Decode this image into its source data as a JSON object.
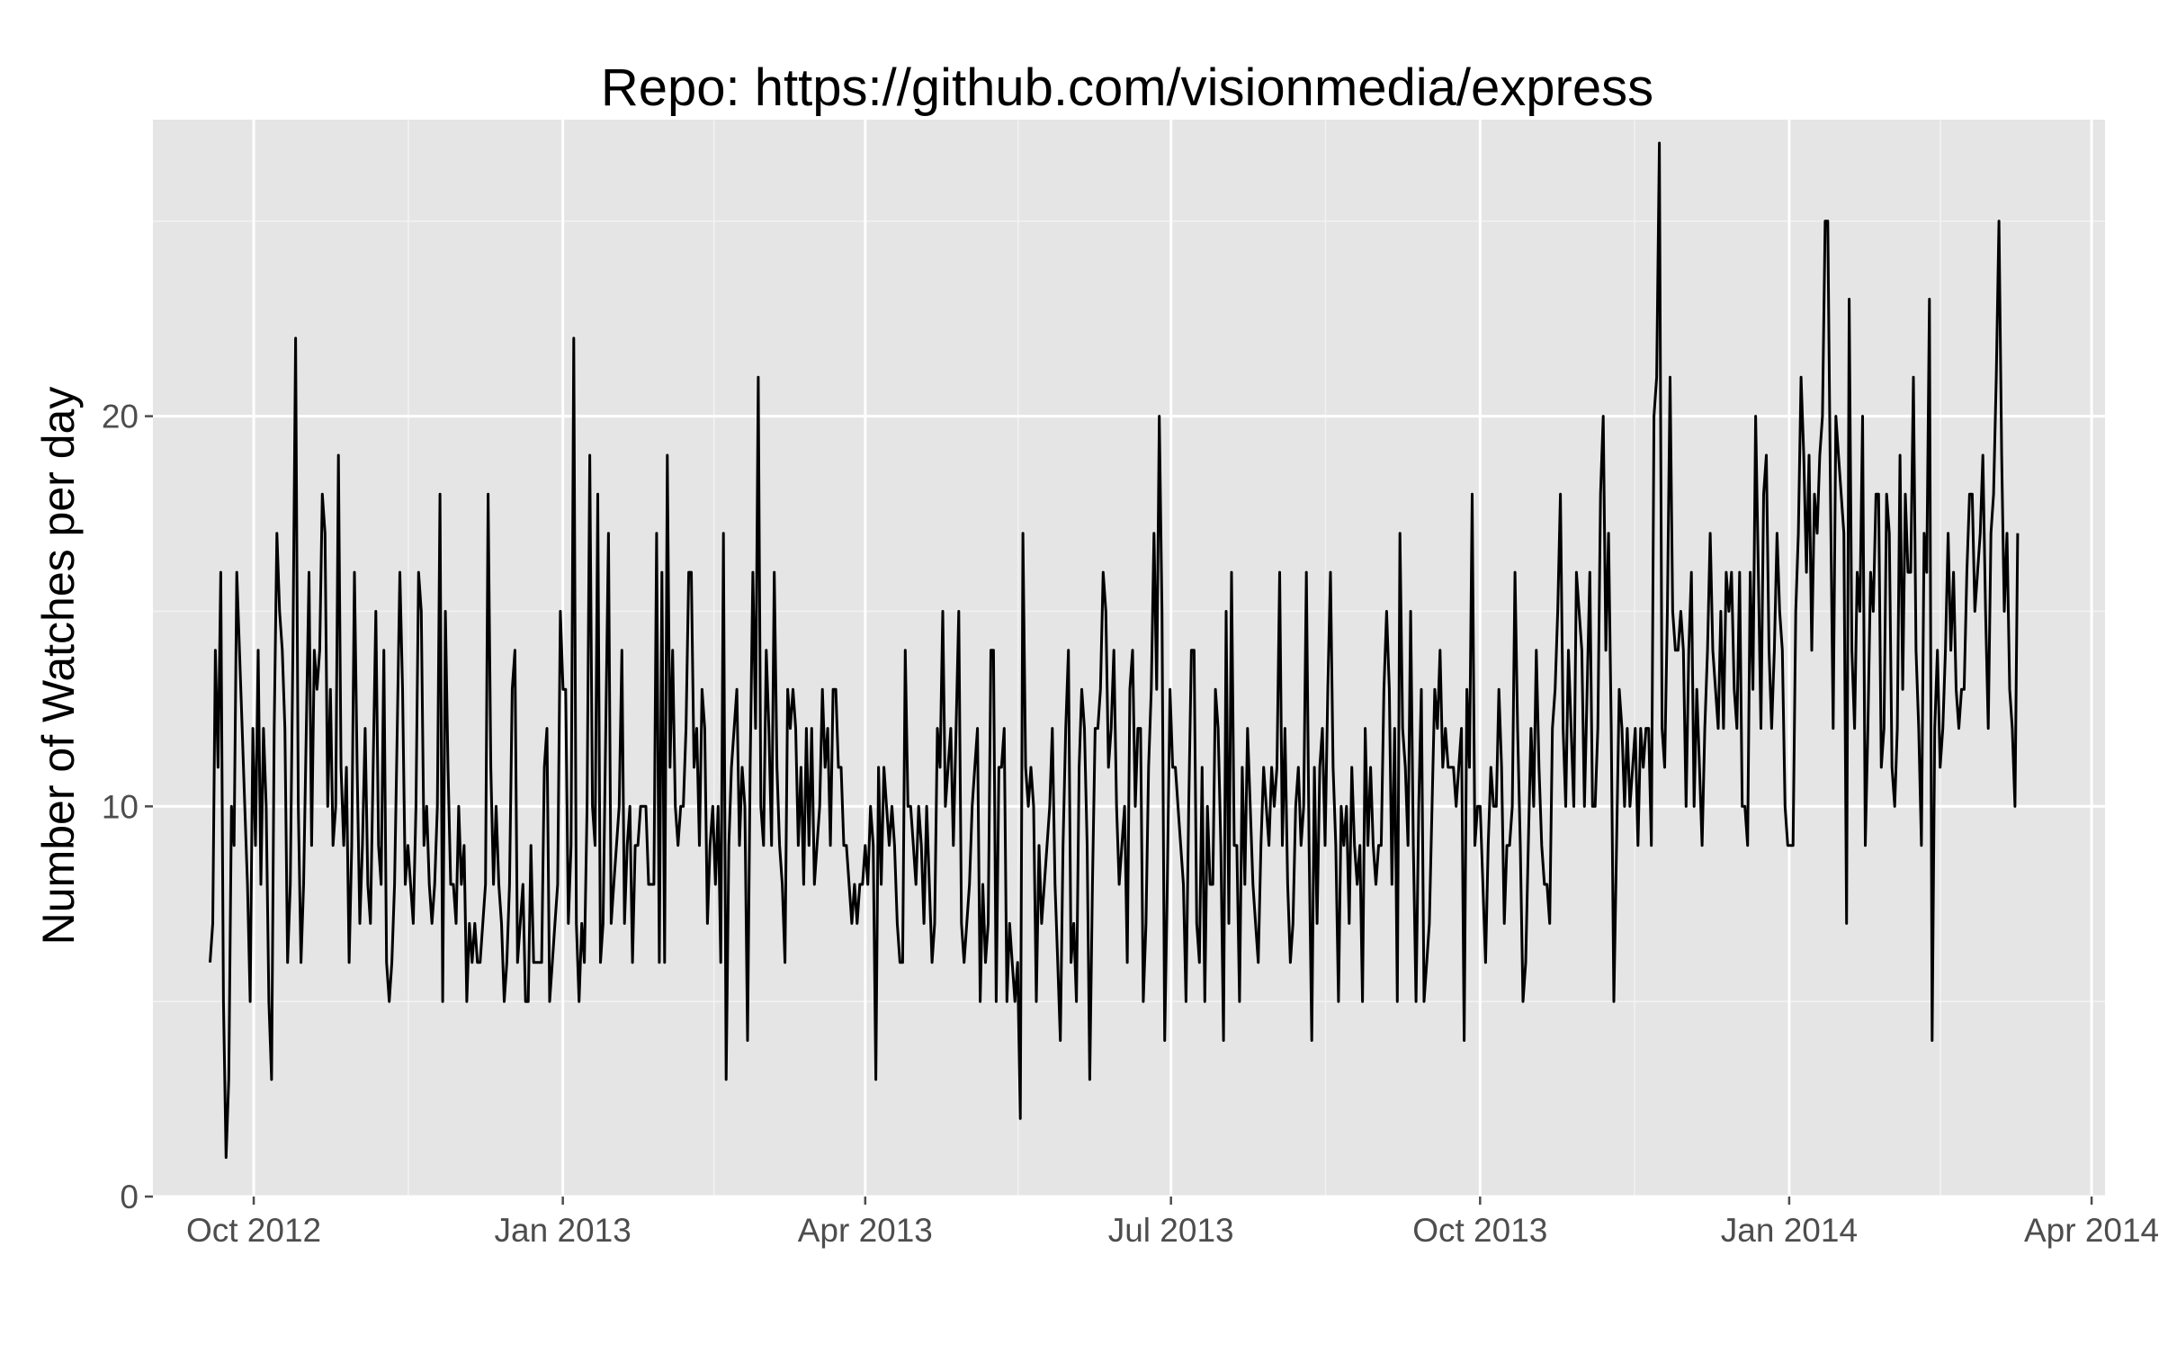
{
  "chart_data": {
    "type": "line",
    "title": "Repo: https://github.com/visionmedia/express",
    "xlabel": "",
    "ylabel": "Number of Watches per day",
    "x_start": "2012-09-18",
    "x_end": "2014-03-10",
    "xlim": [
      "2012-09-01",
      "2014-04-05"
    ],
    "ylim": [
      0,
      27.6
    ],
    "y_ticks": [
      0,
      10,
      20
    ],
    "x_ticks": [
      {
        "date": "2012-10-01",
        "label": "Oct 2012"
      },
      {
        "date": "2013-01-01",
        "label": "Jan 2013"
      },
      {
        "date": "2013-04-01",
        "label": "Apr 2013"
      },
      {
        "date": "2013-07-01",
        "label": "Jul 2013"
      },
      {
        "date": "2013-10-01",
        "label": "Oct 2013"
      },
      {
        "date": "2014-01-01",
        "label": "Jan 2014"
      },
      {
        "date": "2014-04-01",
        "label": "Apr 2014"
      }
    ],
    "grid": true,
    "legend": "none",
    "colors": {
      "panel_background": "#e5e5e5",
      "major_grid": "#ffffff",
      "minor_grid": "#f2f2f2",
      "line": "#000000",
      "tick_text": "#4d4d4d",
      "axis_tick": "#4d4d4d"
    },
    "series": [
      {
        "values": [
          6,
          7,
          14,
          11,
          16,
          5,
          1,
          3,
          10,
          9,
          16,
          14,
          12,
          10,
          8,
          5,
          12,
          9,
          14,
          8,
          12,
          10,
          5,
          3,
          12,
          17,
          15,
          14,
          12,
          6,
          8,
          14,
          22,
          10,
          6,
          8,
          12,
          16,
          9,
          14,
          13,
          14,
          18,
          17,
          10,
          13,
          9,
          10,
          19,
          11,
          9,
          11,
          6,
          9,
          16,
          11,
          7,
          9,
          12,
          8,
          7,
          11,
          15,
          9,
          8,
          14,
          6,
          5,
          6,
          8,
          12,
          16,
          13,
          8,
          9,
          8,
          7,
          10,
          16,
          15,
          9,
          10,
          8,
          7,
          8,
          10,
          18,
          5,
          15,
          11,
          8,
          8,
          7,
          10,
          8,
          9,
          5,
          7,
          6,
          7,
          6,
          6,
          7,
          8,
          18,
          11,
          8,
          10,
          8,
          7,
          5,
          6,
          8,
          13,
          14,
          6,
          7,
          8,
          5,
          5,
          9,
          6,
          6,
          6,
          6,
          11,
          12,
          5,
          6,
          7,
          8,
          15,
          13,
          13,
          7,
          9,
          22,
          7,
          5,
          7,
          6,
          10,
          19,
          10,
          9,
          18,
          6,
          7,
          12,
          17,
          7,
          8,
          9,
          10,
          14,
          7,
          9,
          10,
          6,
          9,
          9,
          10,
          10,
          10,
          8,
          8,
          8,
          17,
          6,
          16,
          6,
          19,
          11,
          14,
          10,
          9,
          10,
          10,
          12,
          16,
          16,
          11,
          12,
          9,
          13,
          12,
          7,
          9,
          10,
          8,
          10,
          6,
          17,
          3,
          9,
          11,
          12,
          13,
          9,
          11,
          10,
          4,
          11,
          16,
          12,
          21,
          10,
          9,
          14,
          12,
          9,
          16,
          11,
          9,
          8,
          6,
          13,
          12,
          13,
          12,
          9,
          11,
          8,
          12,
          9,
          12,
          8,
          9,
          10,
          13,
          11,
          12,
          9,
          13,
          13,
          11,
          11,
          9,
          9,
          8,
          7,
          8,
          7,
          8,
          8,
          9,
          8,
          10,
          9,
          3,
          11,
          8,
          11,
          10,
          9,
          10,
          9,
          7,
          6,
          6,
          14,
          10,
          10,
          9,
          8,
          10,
          9,
          7,
          10,
          8,
          6,
          7,
          12,
          11,
          15,
          10,
          11,
          12,
          9,
          12,
          15,
          7,
          6,
          7,
          8,
          10,
          11,
          12,
          5,
          8,
          6,
          7,
          14,
          14,
          5,
          11,
          11,
          12,
          5,
          7,
          6,
          5,
          6,
          2,
          17,
          11,
          10,
          11,
          10,
          5,
          9,
          7,
          8,
          9,
          10,
          12,
          8,
          6,
          4,
          9,
          12,
          14,
          6,
          7,
          5,
          11,
          13,
          12,
          9,
          3,
          8,
          12,
          12,
          13,
          16,
          15,
          11,
          12,
          14,
          10,
          8,
          9,
          10,
          6,
          13,
          14,
          10,
          12,
          12,
          5,
          7,
          11,
          13,
          17,
          13,
          20,
          15,
          4,
          8,
          13,
          11,
          11,
          10,
          9,
          8,
          5,
          10,
          14,
          14,
          7,
          6,
          11,
          5,
          10,
          8,
          8,
          13,
          12,
          9,
          4,
          15,
          7,
          16,
          9,
          9,
          5,
          11,
          8,
          12,
          10,
          8,
          7,
          6,
          9,
          11,
          10,
          9,
          11,
          10,
          11,
          16,
          9,
          12,
          8,
          6,
          7,
          10,
          11,
          9,
          10,
          16,
          9,
          4,
          11,
          7,
          11,
          12,
          9,
          13,
          16,
          11,
          9,
          5,
          10,
          9,
          10,
          7,
          11,
          9,
          8,
          9,
          5,
          12,
          9,
          11,
          9,
          8,
          9,
          9,
          13,
          15,
          13,
          8,
          12,
          5,
          17,
          12,
          11,
          9,
          15,
          9,
          5,
          10,
          13,
          5,
          6,
          7,
          10,
          13,
          12,
          14,
          11,
          12,
          11,
          11,
          11,
          10,
          11,
          12,
          4,
          13,
          11,
          18,
          9,
          10,
          10,
          8,
          6,
          9,
          11,
          10,
          10,
          13,
          11,
          7,
          9,
          9,
          10,
          16,
          12,
          9,
          5,
          6,
          9,
          12,
          10,
          14,
          11,
          9,
          8,
          8,
          7,
          12,
          13,
          15,
          18,
          12,
          10,
          14,
          12,
          10,
          16,
          15,
          14,
          10,
          13,
          16,
          10,
          10,
          12,
          18,
          20,
          14,
          17,
          12,
          5,
          9,
          13,
          12,
          10,
          12,
          10,
          11,
          12,
          9,
          12,
          11,
          12,
          12,
          9,
          20,
          21,
          27,
          12,
          11,
          15,
          21,
          15,
          14,
          14,
          15,
          14,
          10,
          14,
          16,
          10,
          13,
          11,
          9,
          12,
          14,
          17,
          14,
          13,
          12,
          15,
          12,
          16,
          15,
          16,
          13,
          12,
          16,
          10,
          10,
          9,
          16,
          13,
          20,
          16,
          12,
          18,
          19,
          14,
          12,
          14,
          17,
          15,
          14,
          10,
          9,
          9,
          9,
          15,
          17,
          21,
          19,
          16,
          19,
          14,
          18,
          17,
          19,
          20,
          25,
          25,
          18,
          12,
          20,
          19,
          18,
          17,
          7,
          23,
          14,
          12,
          16,
          15,
          20,
          9,
          12,
          16,
          15,
          18,
          18,
          11,
          12,
          18,
          17,
          11,
          10,
          12,
          19,
          13,
          18,
          16,
          16,
          21,
          14,
          12,
          9,
          17,
          16,
          23,
          4,
          12,
          14,
          11,
          12,
          14,
          17,
          14,
          16,
          13,
          12,
          13,
          13,
          16,
          18,
          18,
          15,
          16,
          17,
          19,
          15,
          12,
          17,
          18,
          21,
          25,
          19,
          15,
          17,
          13,
          12,
          10,
          17
        ]
      }
    ]
  }
}
